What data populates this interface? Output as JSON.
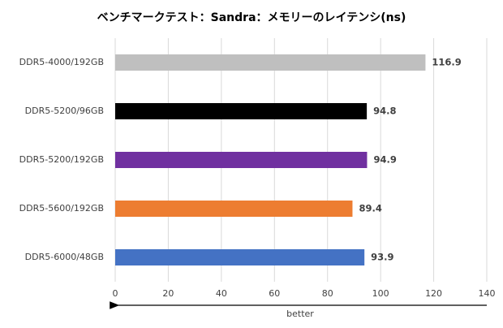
{
  "chart_data": {
    "type": "hbar",
    "title": "ベンチマークテスト：Sandra：メモリーのレイテンシ(ns)",
    "categories": [
      "DDR5-4000/192GB",
      "DDR5-5200/96GB",
      "DDR5-5200/192GB",
      "DDR5-5600/192GB",
      "DDR5-6000/48GB"
    ],
    "values": [
      116.9,
      94.8,
      94.9,
      89.4,
      93.9
    ],
    "colors": [
      "#bfbfbf",
      "#000000",
      "#7030a0",
      "#ed7d31",
      "#4472c4"
    ],
    "xlim": [
      0,
      140
    ],
    "xticks": [
      0,
      20,
      40,
      60,
      80,
      100,
      120,
      140
    ],
    "grid": true,
    "annotation": "better"
  }
}
